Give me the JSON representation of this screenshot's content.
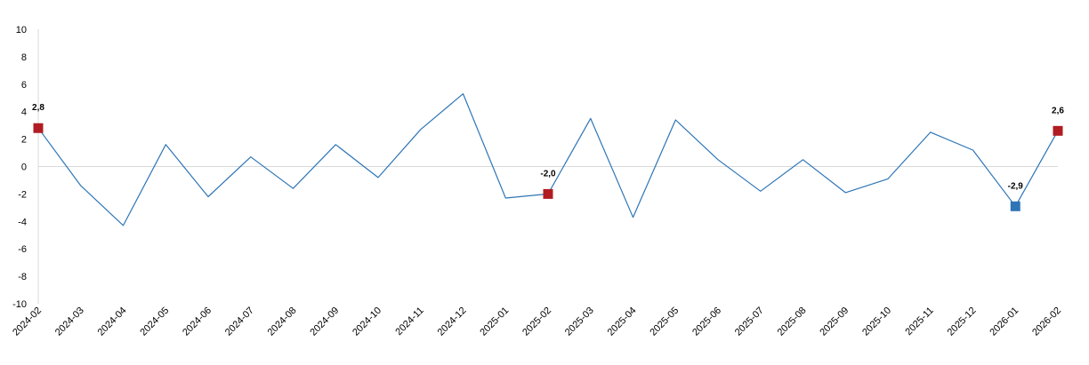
{
  "chart_data": {
    "type": "line",
    "title": "",
    "xlabel": "",
    "ylabel": "",
    "ylim": [
      -10,
      10
    ],
    "yticks": [
      10,
      8,
      6,
      4,
      2,
      0,
      -2,
      -4,
      -6,
      -8,
      -10
    ],
    "categories": [
      "2024-02",
      "2024-03",
      "2024-04",
      "2024-05",
      "2024-06",
      "2024-07",
      "2024-08",
      "2024-09",
      "2024-10",
      "2024-11",
      "2024-12",
      "2025-01",
      "2025-02",
      "2025-03",
      "2025-04",
      "2025-05",
      "2025-06",
      "2025-07",
      "2025-08",
      "2025-09",
      "2025-10",
      "2025-11",
      "2025-12",
      "2026-01",
      "2026-02"
    ],
    "series": [
      {
        "values": [
          2.8,
          -1.4,
          -4.3,
          1.6,
          -2.2,
          0.7,
          -1.6,
          1.6,
          -0.8,
          2.7,
          5.3,
          -2.3,
          -2.0,
          3.5,
          -3.7,
          3.4,
          0.5,
          -1.8,
          0.5,
          -1.9,
          -0.9,
          2.5,
          1.2,
          -2.9,
          2.6
        ],
        "color": "#2e75b6"
      }
    ],
    "highlighted_points": [
      {
        "category": "2024-02",
        "value": 2.8,
        "label": "2,8",
        "color": "#b01c22"
      },
      {
        "category": "2025-02",
        "value": -2.0,
        "label": "-2,0",
        "color": "#b01c22"
      },
      {
        "category": "2026-01",
        "value": -2.9,
        "label": "-2,9",
        "color": "#2e75b6"
      },
      {
        "category": "2026-02",
        "value": 2.6,
        "label": "2,6",
        "color": "#b01c22"
      }
    ],
    "grid": false,
    "zero_line_color": "#d9d9d9",
    "axis_color": "#d9d9d9"
  }
}
